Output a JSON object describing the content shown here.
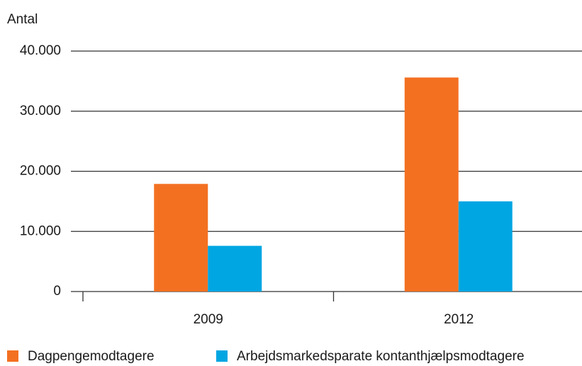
{
  "chart_data": {
    "type": "bar",
    "y_axis_label": "Antal",
    "categories": [
      "2009",
      "2012"
    ],
    "series": [
      {
        "name": "Dagpengemodtagere",
        "color": "#f37021",
        "values": [
          17900,
          35600
        ]
      },
      {
        "name": "Arbejdsmarkedsparate kontanthjælpsmodtagere",
        "color": "#00a6e2",
        "values": [
          7600,
          15000
        ]
      }
    ],
    "ylim": [
      0,
      40000
    ],
    "yticks": [
      0,
      {
        "value": 10000,
        "label": "10.000"
      },
      {
        "value": 20000,
        "label": "20.000"
      },
      {
        "value": 30000,
        "label": "30.000"
      },
      {
        "value": 40000,
        "label": "40.000"
      }
    ],
    "grid": true,
    "legend": "bottom"
  }
}
